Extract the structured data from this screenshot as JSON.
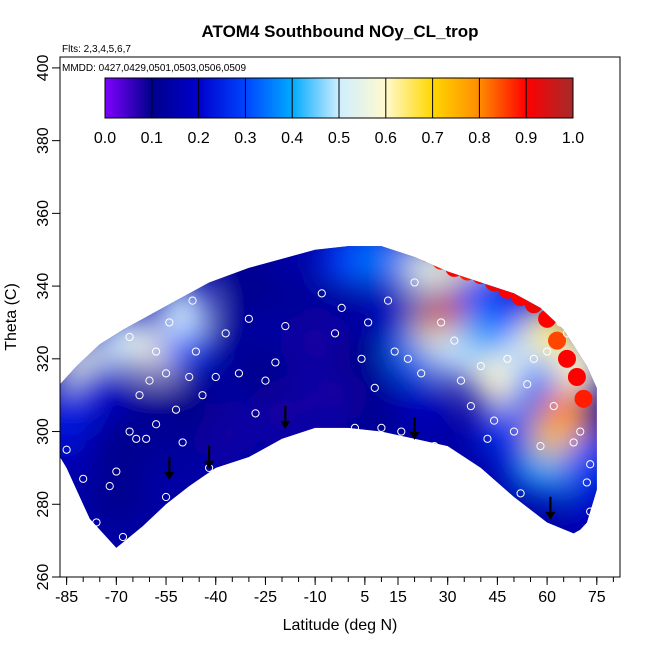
{
  "chart_data": {
    "type": "heatmap",
    "title": "ATOM4 Southbound NOy_CL_trop",
    "flights_note": "Flts: 2,3,4,5,6,7",
    "dates_note": "MMDD: 0427,0429,0501,0503,0506,0509",
    "xlabel": "Latitude (deg N)",
    "ylabel": "Theta (C)",
    "xlim": [
      -87,
      82
    ],
    "ylim": [
      260,
      403
    ],
    "x_ticks": [
      -85,
      -70,
      -55,
      -40,
      -25,
      -10,
      5,
      15,
      30,
      45,
      60,
      75
    ],
    "x_minor_step": 5,
    "y_ticks": [
      260,
      280,
      300,
      320,
      340,
      360,
      380,
      400
    ],
    "colorbar": {
      "ticks": [
        "0.0",
        "0.1",
        "0.2",
        "0.3",
        "0.4",
        "0.5",
        "0.6",
        "0.7",
        "0.8",
        "0.9",
        "1.0"
      ],
      "range": [
        0,
        1
      ],
      "stops": [
        "#7f00ff",
        "#00008b",
        "#0000cd",
        "#0044ff",
        "#00aaff",
        "#cfeeff",
        "#fffacd",
        "#ffd700",
        "#ff8c00",
        "#ff0000",
        "#a52a2a"
      ]
    },
    "upper_boundary": [
      [
        -87,
        313
      ],
      [
        -82,
        318
      ],
      [
        -75,
        324
      ],
      [
        -68,
        328
      ],
      [
        -58,
        333
      ],
      [
        -50,
        337
      ],
      [
        -42,
        341
      ],
      [
        -30,
        345
      ],
      [
        -18,
        348
      ],
      [
        -10,
        350
      ],
      [
        0,
        351
      ],
      [
        10,
        351
      ],
      [
        20,
        348
      ],
      [
        30,
        344
      ],
      [
        40,
        341
      ],
      [
        50,
        338
      ],
      [
        58,
        334
      ],
      [
        65,
        328
      ],
      [
        72,
        318
      ],
      [
        75,
        312
      ]
    ],
    "lower_boundary": [
      [
        75,
        284
      ],
      [
        73,
        278
      ],
      [
        72,
        275
      ],
      [
        70,
        273
      ],
      [
        68,
        272
      ],
      [
        60,
        275
      ],
      [
        50,
        282
      ],
      [
        40,
        290
      ],
      [
        30,
        296
      ],
      [
        20,
        298
      ],
      [
        10,
        300
      ],
      [
        0,
        301
      ],
      [
        -10,
        301
      ],
      [
        -20,
        298
      ],
      [
        -30,
        293
      ],
      [
        -40,
        290
      ],
      [
        -48,
        285
      ],
      [
        -55,
        280
      ],
      [
        -62,
        274
      ],
      [
        -70,
        268
      ],
      [
        -78,
        276
      ],
      [
        -85,
        290
      ],
      [
        -87,
        293
      ]
    ],
    "contour_points": [
      [
        -87,
        300,
        0.22
      ],
      [
        -82,
        285,
        0.15
      ],
      [
        -82,
        308,
        0.25
      ],
      [
        -80,
        318,
        0.55
      ],
      [
        -74,
        312,
        0.2
      ],
      [
        -70,
        282,
        0.1
      ],
      [
        -67,
        325,
        0.5
      ],
      [
        -62,
        306,
        0.12
      ],
      [
        -57,
        322,
        0.6
      ],
      [
        -54,
        298,
        0.12
      ],
      [
        -50,
        324,
        0.3
      ],
      [
        -50,
        333,
        0.5
      ],
      [
        -45,
        312,
        0.12
      ],
      [
        -38,
        300,
        0.08
      ],
      [
        -35,
        325,
        0.12
      ],
      [
        -25,
        315,
        0.1
      ],
      [
        -20,
        305,
        0.08
      ],
      [
        -15,
        335,
        0.12
      ],
      [
        -10,
        325,
        0.08
      ],
      [
        -5,
        310,
        0.08
      ],
      [
        0,
        340,
        0.12
      ],
      [
        5,
        320,
        0.1
      ],
      [
        10,
        305,
        0.1
      ],
      [
        15,
        333,
        0.18
      ],
      [
        20,
        322,
        0.35
      ],
      [
        22,
        308,
        0.18
      ],
      [
        28,
        328,
        0.65
      ],
      [
        31,
        332,
        0.95
      ],
      [
        33,
        322,
        0.5
      ],
      [
        38,
        345,
        0.65
      ],
      [
        40,
        338,
        0.3
      ],
      [
        42,
        326,
        0.4
      ],
      [
        45,
        314,
        0.6
      ],
      [
        48,
        300,
        0.3
      ],
      [
        50,
        330,
        0.3
      ],
      [
        52,
        292,
        0.22
      ],
      [
        55,
        322,
        0.5
      ],
      [
        58,
        312,
        0.35
      ],
      [
        60,
        290,
        0.4
      ],
      [
        62,
        328,
        0.65
      ],
      [
        63,
        300,
        0.7
      ],
      [
        66,
        305,
        0.82
      ],
      [
        68,
        296,
        0.72
      ],
      [
        70,
        318,
        0.6
      ],
      [
        72,
        292,
        0.3
      ],
      [
        74,
        280,
        0.2
      ],
      [
        -30,
        340,
        0.1
      ],
      [
        -48,
        306,
        0.1
      ],
      [
        -68,
        296,
        0.1
      ],
      [
        0,
        348,
        0.3
      ],
      [
        24,
        345,
        0.55
      ],
      [
        10,
        348,
        0.35
      ]
    ],
    "hot_cells": [
      [
        21,
        352,
        0.8
      ],
      [
        24,
        349,
        0.85
      ],
      [
        28,
        347,
        0.88
      ],
      [
        32,
        345,
        0.9
      ],
      [
        36,
        344,
        0.88
      ],
      [
        40,
        343,
        0.9
      ],
      [
        44,
        341,
        0.92
      ],
      [
        48,
        339,
        0.9
      ],
      [
        52,
        337,
        0.9
      ],
      [
        56,
        335,
        0.92
      ],
      [
        60,
        331,
        0.9
      ],
      [
        63,
        325,
        0.85
      ],
      [
        66,
        320,
        0.9
      ],
      [
        69,
        315,
        0.9
      ],
      [
        71,
        309,
        0.88
      ]
    ],
    "observation_points": [
      [
        -80,
        287
      ],
      [
        -72,
        285
      ],
      [
        -70,
        289
      ],
      [
        -66,
        300
      ],
      [
        -66,
        326
      ],
      [
        -63,
        310
      ],
      [
        -61,
        298
      ],
      [
        -60,
        314
      ],
      [
        -58,
        302
      ],
      [
        -58,
        322
      ],
      [
        -55,
        316
      ],
      [
        -54,
        330
      ],
      [
        -52,
        306
      ],
      [
        -50,
        297
      ],
      [
        -50,
        280
      ],
      [
        -48,
        315
      ],
      [
        -47,
        336
      ],
      [
        -46,
        322
      ],
      [
        -44,
        310
      ],
      [
        -42,
        290
      ],
      [
        -40,
        315
      ],
      [
        -37,
        327
      ],
      [
        -33,
        316
      ],
      [
        -30,
        331
      ],
      [
        -28,
        305
      ],
      [
        -25,
        314
      ],
      [
        -22,
        319
      ],
      [
        -19,
        329
      ],
      [
        -15,
        296
      ],
      [
        -10,
        299
      ],
      [
        -8,
        338
      ],
      [
        -4,
        327
      ],
      [
        -2,
        334
      ],
      [
        2,
        301
      ],
      [
        4,
        320
      ],
      [
        6,
        330
      ],
      [
        8,
        312
      ],
      [
        10,
        301
      ],
      [
        12,
        336
      ],
      [
        14,
        322
      ],
      [
        16,
        300
      ],
      [
        18,
        320
      ],
      [
        20,
        341
      ],
      [
        22,
        316
      ],
      [
        26,
        296
      ],
      [
        28,
        330
      ],
      [
        30,
        291
      ],
      [
        32,
        325
      ],
      [
        34,
        314
      ],
      [
        37,
        307
      ],
      [
        38,
        286
      ],
      [
        40,
        318
      ],
      [
        42,
        298
      ],
      [
        44,
        303
      ],
      [
        46,
        280
      ],
      [
        48,
        320
      ],
      [
        50,
        300
      ],
      [
        52,
        283
      ],
      [
        54,
        313
      ],
      [
        56,
        320
      ],
      [
        58,
        296
      ],
      [
        60,
        322
      ],
      [
        62,
        307
      ],
      [
        64,
        330
      ],
      [
        66,
        327
      ],
      [
        68,
        297
      ],
      [
        70,
        300
      ],
      [
        72,
        286
      ],
      [
        73,
        278
      ],
      [
        73,
        291
      ],
      [
        -85,
        295
      ],
      [
        -76,
        275
      ],
      [
        -68,
        271
      ],
      [
        -64,
        298
      ],
      [
        -55,
        282
      ]
    ],
    "arrows": [
      [
        -54,
        287
      ],
      [
        -42,
        290
      ],
      [
        -19,
        301
      ],
      [
        20,
        298
      ],
      [
        61,
        276
      ]
    ]
  }
}
